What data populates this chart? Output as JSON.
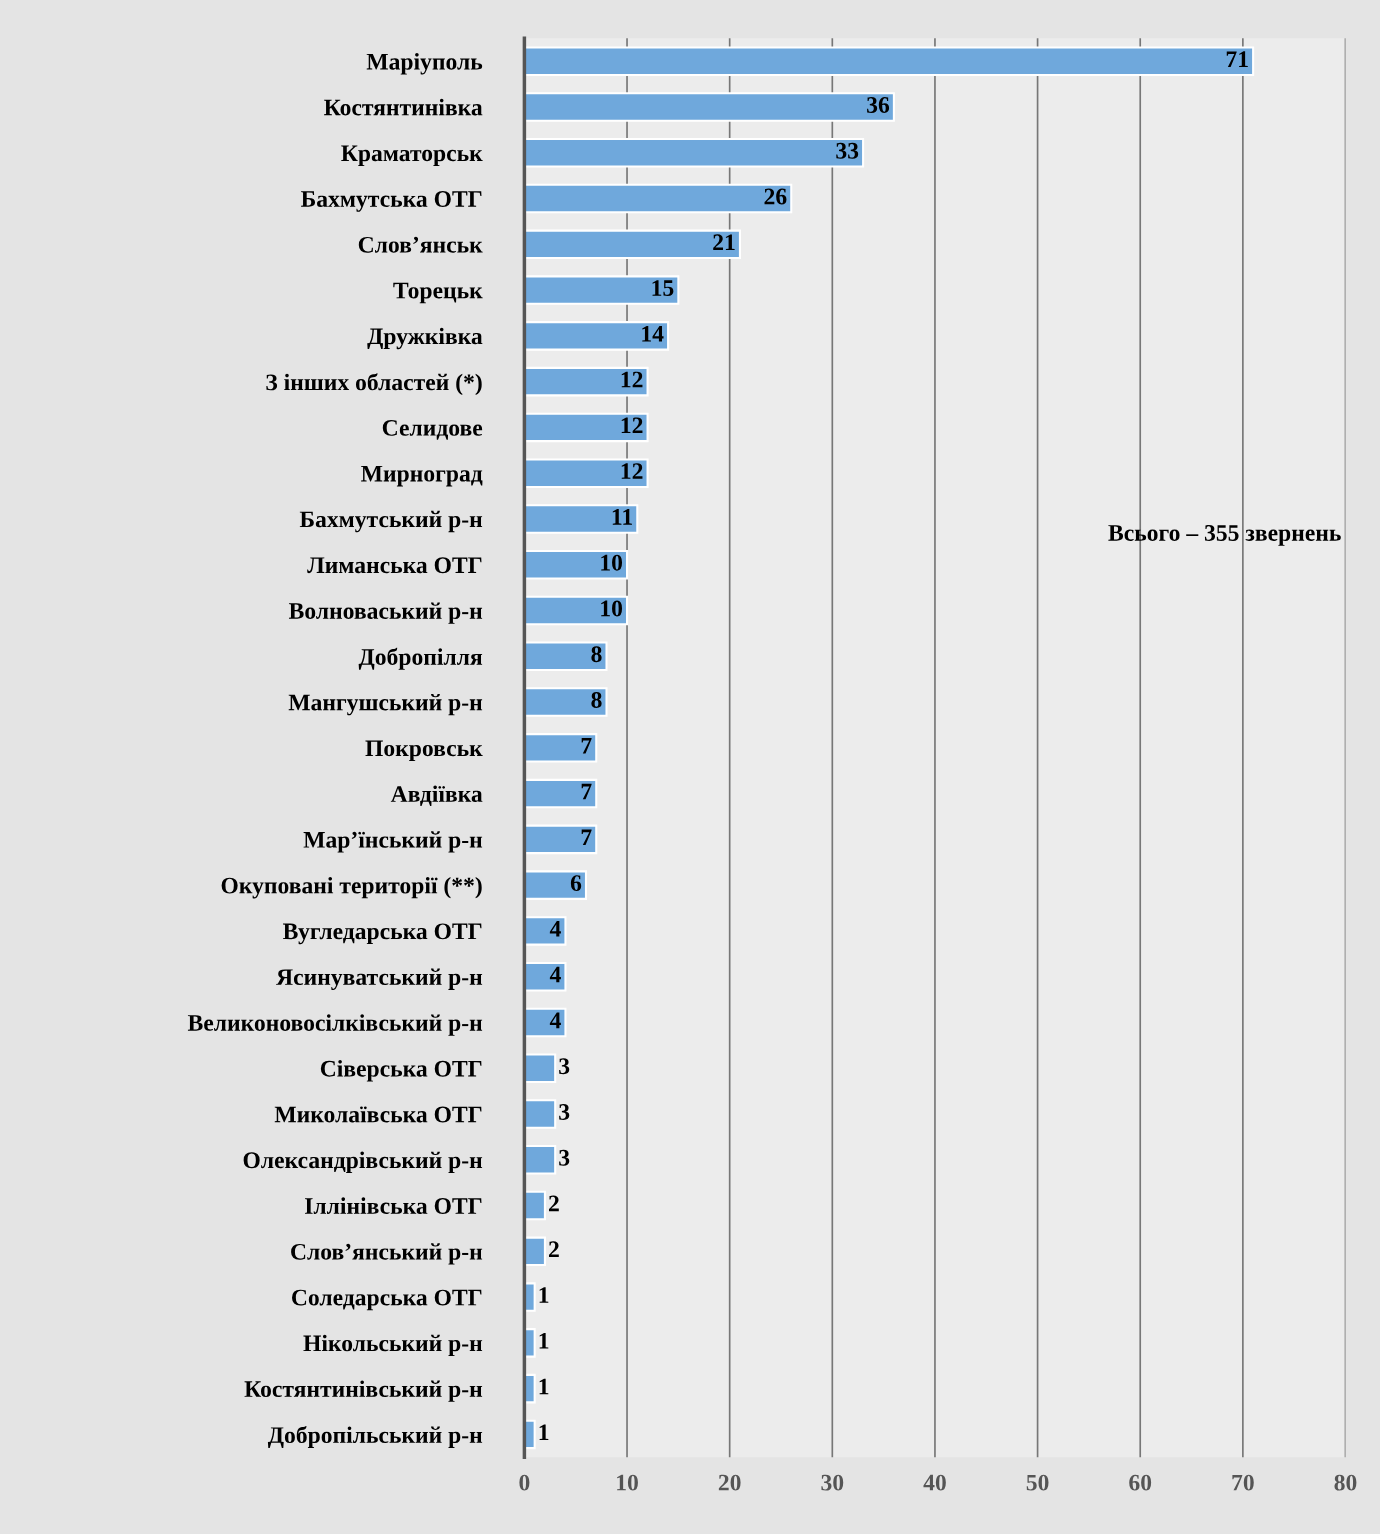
{
  "chart_data": {
    "type": "bar",
    "orientation": "horizontal",
    "categories": [
      "Маріуполь",
      "Костянтинівка",
      "Краматорськ",
      "Бахмутська ОТГ",
      "Слов’янськ",
      "Торецьк",
      "Дружківка",
      "З інших областей (*)",
      "Селидове",
      "Мирноград",
      "Бахмутський р-н",
      "Лиманська ОТГ",
      "Волноваський р-н",
      "Добропілля",
      "Мангушський р-н",
      "Покровськ",
      "Авдіївка",
      "Мар’їнський р-н",
      "Окуповані території (**)",
      "Вугледарська ОТГ",
      "Ясинуватський р-н",
      "Великоновосілківський р-н",
      "Сіверська ОТГ",
      "Миколаївська ОТГ",
      "Олександрівський р-н",
      "Іллінівська ОТГ",
      "Слов’янський р-н",
      "Соледарська ОТГ",
      "Нікольський р-н",
      "Костянтинівський р-н",
      "Добропільський р-н"
    ],
    "values": [
      71,
      36,
      33,
      26,
      21,
      15,
      14,
      12,
      12,
      12,
      11,
      10,
      10,
      8,
      8,
      7,
      7,
      7,
      6,
      4,
      4,
      4,
      3,
      3,
      3,
      2,
      2,
      1,
      1,
      1,
      1
    ],
    "color": "#6fa8dc",
    "xlim": [
      0,
      80
    ],
    "xticks": [
      0,
      10,
      20,
      30,
      40,
      50,
      60,
      70,
      80
    ],
    "grid": "x",
    "data_labels": true,
    "legend": false,
    "annotations": [
      "Всього – 355 звернень"
    ]
  }
}
